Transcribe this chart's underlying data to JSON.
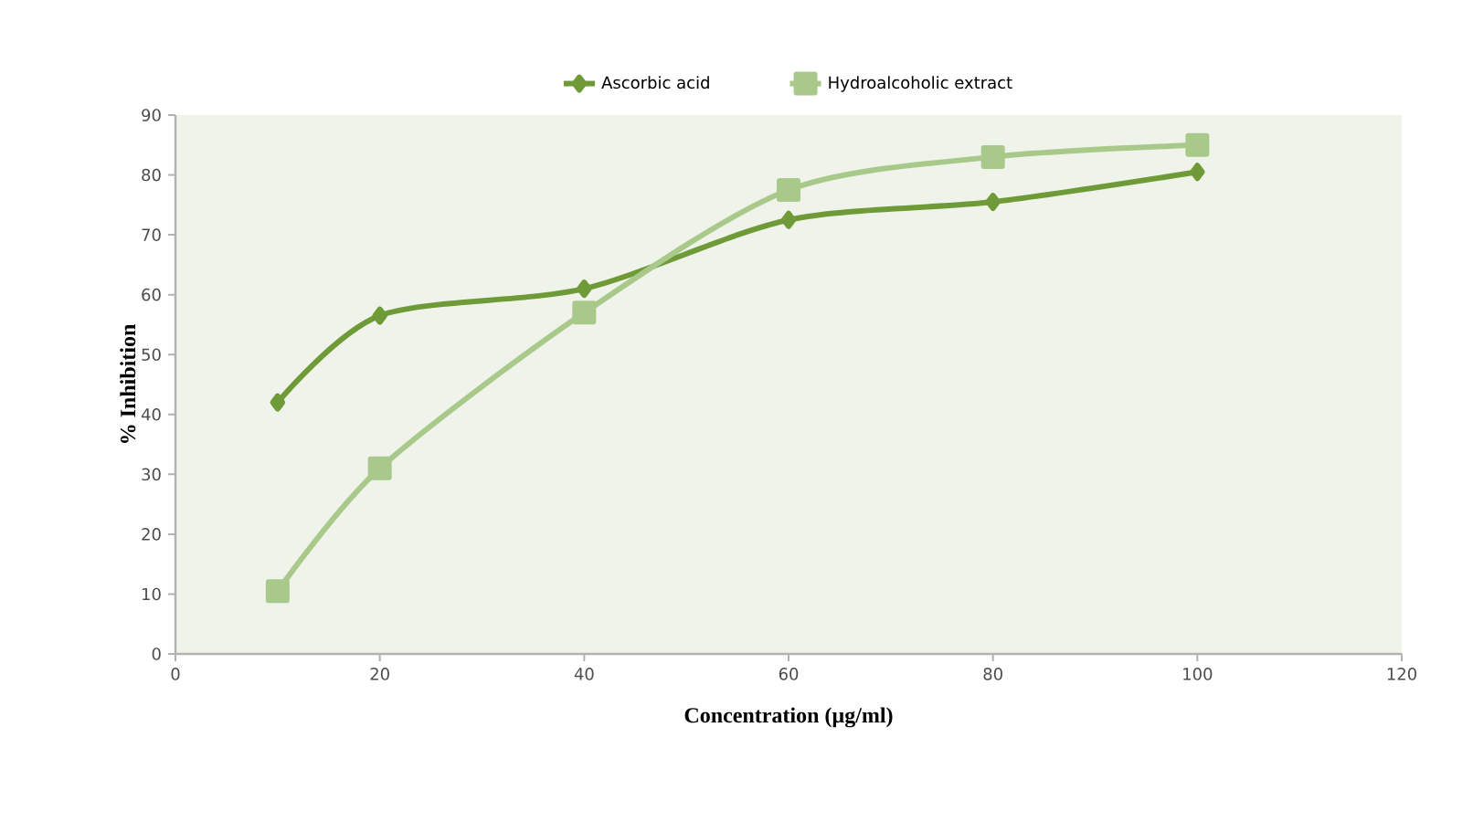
{
  "chart_data": {
    "type": "line",
    "xlabel": "Concentration (µg/ml)",
    "ylabel": "% Inhibition",
    "x": [
      10,
      20,
      40,
      60,
      80,
      100
    ],
    "series": [
      {
        "name": "Ascorbic acid",
        "color": "#6e9a37",
        "marker": "diamond",
        "values": [
          42,
          56.5,
          61,
          72.5,
          75.5,
          80.5
        ]
      },
      {
        "name": "Hydroalcoholic extract",
        "color": "#a9c98a",
        "marker": "square",
        "values": [
          10.5,
          31,
          57,
          77.5,
          83,
          85
        ]
      }
    ],
    "xlim": [
      0,
      120
    ],
    "xticks": [
      0,
      20,
      40,
      60,
      80,
      100,
      120
    ],
    "ylim": [
      0,
      90
    ],
    "yticks": [
      0,
      10,
      20,
      30,
      40,
      50,
      60,
      70,
      80,
      90
    ],
    "grid": false,
    "legend": "top",
    "line_style": "solid"
  }
}
